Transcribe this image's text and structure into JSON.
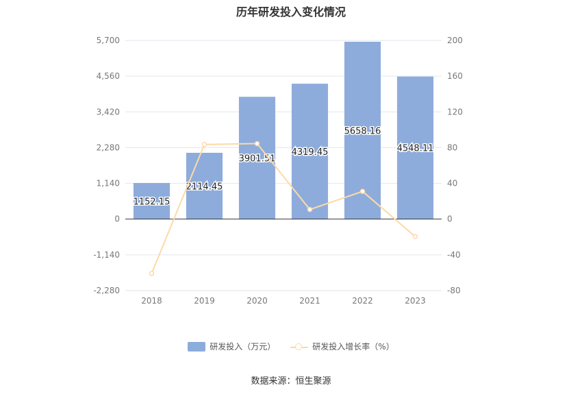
{
  "chart_data": {
    "type": "bar",
    "title": "历年研发投入变化情况",
    "categories": [
      "2018",
      "2019",
      "2020",
      "2021",
      "2022",
      "2023"
    ],
    "series": [
      {
        "name": "研发投入（万元）",
        "type": "bar",
        "axis": "left",
        "values": [
          1152.15,
          2114.45,
          3901.51,
          4319.45,
          5658.16,
          4548.11
        ],
        "data_labels": [
          "1152.15",
          "2114.45",
          "3901.51",
          "4319.45",
          "5658.16",
          "4548.11"
        ],
        "color": "#8eacdb"
      },
      {
        "name": "研发投入增长率（%）",
        "type": "line",
        "axis": "right",
        "values": [
          -60.8,
          83.5,
          84.5,
          10.7,
          31.0,
          -19.6
        ],
        "color": "#fdd9a8"
      }
    ],
    "y_left": {
      "ylim": [
        -2280,
        5700
      ],
      "ticks": [
        "5,700",
        "4,560",
        "3,420",
        "2,280",
        "1,140",
        "0",
        "-1,140",
        "-2,280"
      ]
    },
    "y_right": {
      "ylim": [
        -80,
        200
      ],
      "ticks": [
        "200",
        "160",
        "120",
        "80",
        "40",
        "0",
        "-40",
        "-80"
      ]
    },
    "grid": true,
    "legend": "bottom"
  },
  "source": "数据来源：恒生聚源"
}
